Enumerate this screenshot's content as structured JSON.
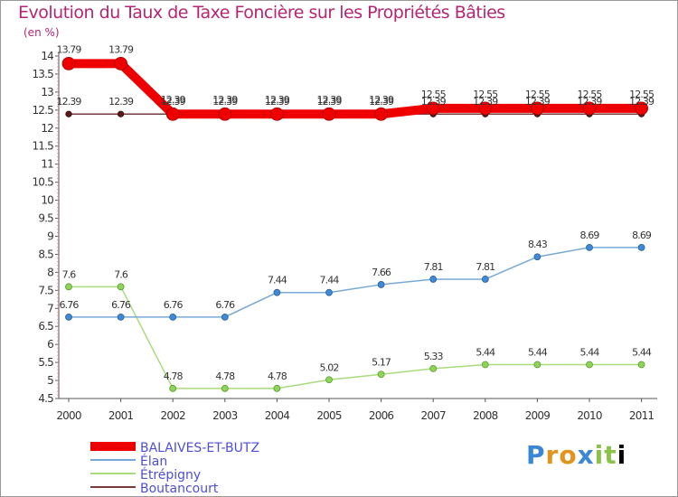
{
  "chart_data": {
    "type": "line",
    "title": "Evolution du Taux de Taxe Foncière sur les Propriétés Bâties",
    "ylabel": "(en %)",
    "xlabel": "",
    "x": [
      "2000",
      "2001",
      "2002",
      "2003",
      "2004",
      "2005",
      "2006",
      "2007",
      "2008",
      "2009",
      "2010",
      "2011"
    ],
    "ylim": [
      4.5,
      14
    ],
    "yticks": [
      "14",
      "13.5",
      "13",
      "12.5",
      "12",
      "11.5",
      "11",
      "10.5",
      "10",
      "9.5",
      "9",
      "8.5",
      "8",
      "7.5",
      "7",
      "6.5",
      "6",
      "5.5",
      "5",
      "4.5"
    ],
    "series": [
      {
        "name": "BALAIVES-ET-BUTZ",
        "color": "#ee0000",
        "values": [
          13.79,
          13.79,
          12.39,
          12.39,
          12.39,
          12.39,
          12.39,
          12.55,
          12.55,
          12.55,
          12.55,
          12.55
        ],
        "labels": [
          "13.79",
          "13.79",
          "12.39",
          "12.39",
          "12.39",
          "12.39",
          "12.39",
          "12.55",
          "12.55",
          "12.55",
          "12.55",
          "12.55"
        ]
      },
      {
        "name": "Élan",
        "color": "#77a9d8",
        "values": [
          6.76,
          6.76,
          6.76,
          6.76,
          7.44,
          7.44,
          7.66,
          7.81,
          7.81,
          8.43,
          8.69,
          8.69
        ],
        "labels": [
          "6.76",
          "6.76",
          "6.76",
          "6.76",
          "7.44",
          "7.44",
          "7.66",
          "7.81",
          "7.81",
          "8.43",
          "8.69",
          "8.69"
        ]
      },
      {
        "name": "Étrépigny",
        "color": "#a9dc7c",
        "values": [
          7.6,
          7.6,
          4.78,
          4.78,
          4.78,
          5.02,
          5.17,
          5.33,
          5.44,
          5.44,
          5.44,
          5.44
        ],
        "labels": [
          "7.6",
          "7.6",
          "4.78",
          "4.78",
          "4.78",
          "5.02",
          "5.17",
          "5.33",
          "5.44",
          "5.44",
          "5.44",
          "5.44"
        ]
      },
      {
        "name": "Boutancourt",
        "color": "#7a3a3a",
        "values": [
          12.39,
          12.39,
          12.39,
          12.39,
          12.39,
          12.39,
          12.39,
          12.39,
          12.39,
          12.39,
          12.39,
          12.39
        ],
        "labels": [
          "12.39",
          "12.39",
          "12.39",
          "12.39",
          "12.39",
          "12.39",
          "12.39",
          "12.39",
          "12.39",
          "12.39",
          "12.39",
          "12.39"
        ]
      }
    ]
  },
  "legend": [
    "BALAIVES-ET-BUTZ",
    "Élan",
    "Étrépigny",
    "Boutancourt"
  ],
  "logo": {
    "letters": [
      "P",
      "r",
      "o",
      "x",
      "i",
      "t",
      "i"
    ]
  }
}
